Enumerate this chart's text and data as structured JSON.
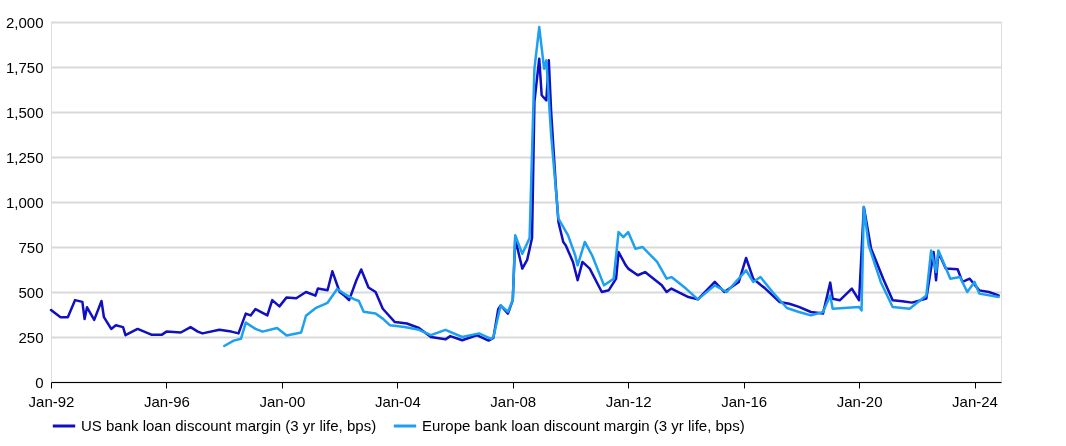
{
  "chart_data": {
    "type": "line",
    "legend": "bottom",
    "grid": "y",
    "xlim": [
      "1992-01",
      "2024-12"
    ],
    "xticks": [
      {
        "value": "1992-01",
        "label": "Jan-92"
      },
      {
        "value": "1996-01",
        "label": "Jan-96"
      },
      {
        "value": "2000-01",
        "label": "Jan-00"
      },
      {
        "value": "2004-01",
        "label": "Jan-04"
      },
      {
        "value": "2008-01",
        "label": "Jan-08"
      },
      {
        "value": "2012-01",
        "label": "Jan-12"
      },
      {
        "value": "2016-01",
        "label": "Jan-16"
      },
      {
        "value": "2020-01",
        "label": "Jan-20"
      },
      {
        "value": "2024-01",
        "label": "Jan-24"
      }
    ],
    "ylim": [
      0,
      2000
    ],
    "yticks": [
      0,
      250,
      500,
      750,
      {
        "value": 1000,
        "label": "1,000"
      },
      {
        "value": 1250,
        "label": "1,250"
      },
      {
        "value": 1500,
        "label": "1,500"
      },
      {
        "value": 1750,
        "label": "1,750"
      },
      {
        "value": 2000,
        "label": "2,000"
      }
    ],
    "series": [
      {
        "name": "US bank loan discount margin (3 yr life, bps)",
        "color": "#1010c0",
        "x": [
          "1992-01",
          "1992-05",
          "1992-08",
          "1992-11",
          "1993-02",
          "1993-03",
          "1993-04",
          "1993-07",
          "1993-10",
          "1993-11",
          "1994-02",
          "1994-04",
          "1994-07",
          "1994-08",
          "1995-01",
          "1995-07",
          "1995-11",
          "1996-01",
          "1996-07",
          "1996-11",
          "1997-02",
          "1997-04",
          "1997-11",
          "1998-04",
          "1998-07",
          "1998-10",
          "1998-12",
          "1999-02",
          "1999-07",
          "1999-09",
          "1999-12",
          "2000-03",
          "2000-07",
          "2000-11",
          "2001-03",
          "2001-04",
          "2001-08",
          "2001-10",
          "2002-01",
          "2002-03",
          "2002-05",
          "2002-08",
          "2002-10",
          "2003-01",
          "2003-04",
          "2003-07",
          "2003-12",
          "2004-05",
          "2004-10",
          "2005-03",
          "2005-09",
          "2005-11",
          "2006-04",
          "2006-10",
          "2007-03",
          "2007-05",
          "2007-07",
          "2007-08",
          "2007-11",
          "2008-01",
          "2008-02",
          "2008-05",
          "2008-07",
          "2008-09",
          "2008-10",
          "2008-12",
          "2009-01",
          "2009-03",
          "2009-04",
          "2009-05",
          "2009-07",
          "2009-08",
          "2009-10",
          "2009-11",
          "2010-02",
          "2010-04",
          "2010-06",
          "2010-09",
          "2011-02",
          "2011-05",
          "2011-08",
          "2011-09",
          "2011-12",
          "2012-01",
          "2012-05",
          "2012-08",
          "2013-03",
          "2013-05",
          "2013-07",
          "2014-02",
          "2014-06",
          "2015-01",
          "2015-05",
          "2015-11",
          "2016-02",
          "2016-05",
          "2016-10",
          "2017-04",
          "2017-08",
          "2017-12",
          "2018-05",
          "2018-10",
          "2019-01",
          "2019-02",
          "2019-05",
          "2019-10",
          "2020-01",
          "2020-03",
          "2020-06",
          "2020-11",
          "2021-03",
          "2021-07",
          "2021-11",
          "2022-05",
          "2022-08",
          "2022-09",
          "2022-10",
          "2023-01",
          "2023-06",
          "2023-08",
          "2023-11",
          "2024-03",
          "2024-07",
          "2024-11"
        ],
        "values": [
          400,
          360,
          360,
          455,
          445,
          350,
          415,
          345,
          450,
          360,
          295,
          315,
          305,
          260,
          295,
          262,
          262,
          280,
          275,
          305,
          280,
          270,
          290,
          280,
          270,
          380,
          370,
          405,
          370,
          455,
          420,
          470,
          465,
          500,
          480,
          520,
          510,
          615,
          500,
          480,
          455,
          565,
          625,
          525,
          500,
          407,
          333,
          325,
          300,
          250,
          237,
          255,
          232,
          260,
          230,
          245,
          405,
          425,
          380,
          455,
          795,
          630,
          678,
          800,
          1556,
          1796,
          1593,
          1565,
          1787,
          1500,
          1074,
          889,
          778,
          760,
          667,
          565,
          667,
          630,
          500,
          510,
          574,
          722,
          648,
          630,
          593,
          611,
          537,
          500,
          519,
          472,
          459,
          556,
          500,
          556,
          689,
          574,
          519,
          444,
          435,
          417,
          389,
          380,
          552,
          463,
          454,
          519,
          454,
          972,
          741,
          574,
          454,
          448,
          441,
          463,
          722,
          565,
          722,
          630,
          626,
          556,
          574,
          509,
          500,
          481
        ]
      },
      {
        "name": "Europe bank loan discount margin (3 yr life, bps)",
        "color": "#1ea0f0",
        "x": [
          "1998-01",
          "1998-05",
          "1998-08",
          "1998-10",
          "1999-02",
          "1999-05",
          "1999-11",
          "2000-03",
          "2000-09",
          "2000-11",
          "2001-03",
          "2001-08",
          "2001-12",
          "2002-03",
          "2002-07",
          "2002-09",
          "2002-11",
          "2003-04",
          "2003-07",
          "2003-10",
          "2004-04",
          "2004-10",
          "2005-03",
          "2005-09",
          "2006-04",
          "2006-11",
          "2007-04",
          "2007-05",
          "2007-08",
          "2007-11",
          "2008-01",
          "2008-02",
          "2008-05",
          "2008-08",
          "2008-10",
          "2008-12",
          "2009-02",
          "2009-03",
          "2009-05",
          "2009-08",
          "2009-12",
          "2010-03",
          "2010-04",
          "2010-07",
          "2010-10",
          "2011-03",
          "2011-07",
          "2011-09",
          "2011-11",
          "2012-01",
          "2012-04",
          "2012-07",
          "2013-01",
          "2013-05",
          "2013-07",
          "2014-01",
          "2014-06",
          "2015-01",
          "2015-06",
          "2016-02",
          "2016-05",
          "2016-08",
          "2017-01",
          "2017-07",
          "2017-12",
          "2018-05",
          "2018-10",
          "2019-01",
          "2019-02",
          "2020-01",
          "2020-02",
          "2020-03",
          "2020-05",
          "2020-10",
          "2021-03",
          "2021-10",
          "2022-05",
          "2022-07",
          "2022-09",
          "2022-10",
          "2023-03",
          "2023-07",
          "2023-10",
          "2024-01",
          "2024-03",
          "2024-11"
        ],
        "values": [
          200,
          230,
          240,
          330,
          295,
          280,
          300,
          258,
          275,
          368,
          410,
          440,
          517,
          490,
          460,
          450,
          390,
          380,
          352,
          315,
          305,
          290,
          260,
          290,
          250,
          270,
          240,
          250,
          425,
          390,
          455,
          815,
          712,
          800,
          1740,
          1972,
          1740,
          1787,
          1370,
          907,
          815,
          704,
          648,
          778,
          704,
          537,
          574,
          833,
          805,
          833,
          740,
          750,
          667,
          574,
          583,
          519,
          459,
          537,
          500,
          620,
          556,
          583,
          500,
          411,
          389,
          370,
          389,
          481,
          407,
          417,
          398,
          972,
          759,
          556,
          417,
          407,
          481,
          731,
          611,
          731,
          574,
          583,
          500,
          556,
          491,
          472
        ]
      }
    ]
  }
}
